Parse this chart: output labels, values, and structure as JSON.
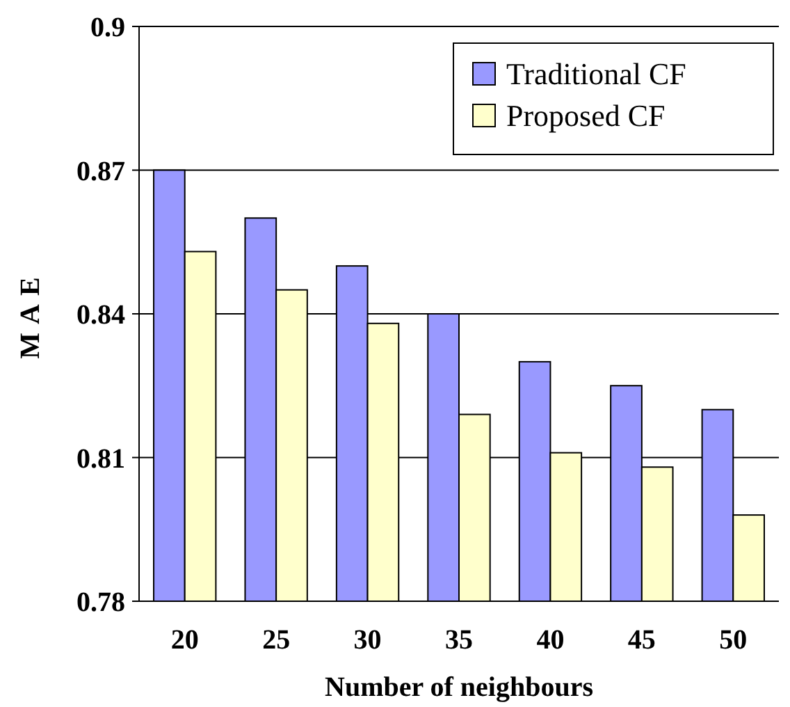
{
  "chart_data": {
    "type": "bar",
    "xlabel": "Number of neighbours",
    "ylabel": "MAE",
    "categories": [
      "20",
      "25",
      "30",
      "35",
      "40",
      "45",
      "50"
    ],
    "series": [
      {
        "name": "Traditional CF",
        "color": "#9999ff",
        "values": [
          0.87,
          0.86,
          0.85,
          0.84,
          0.83,
          0.825,
          0.82
        ]
      },
      {
        "name": "Proposed CF",
        "color": "#ffffcc",
        "values": [
          0.853,
          0.845,
          0.838,
          0.819,
          0.811,
          0.808,
          0.798
        ]
      }
    ],
    "ylim": [
      0.78,
      0.9
    ],
    "yticks": [
      0.78,
      0.81,
      0.84,
      0.87,
      0.9
    ],
    "grid": "y",
    "legend": "top right"
  }
}
